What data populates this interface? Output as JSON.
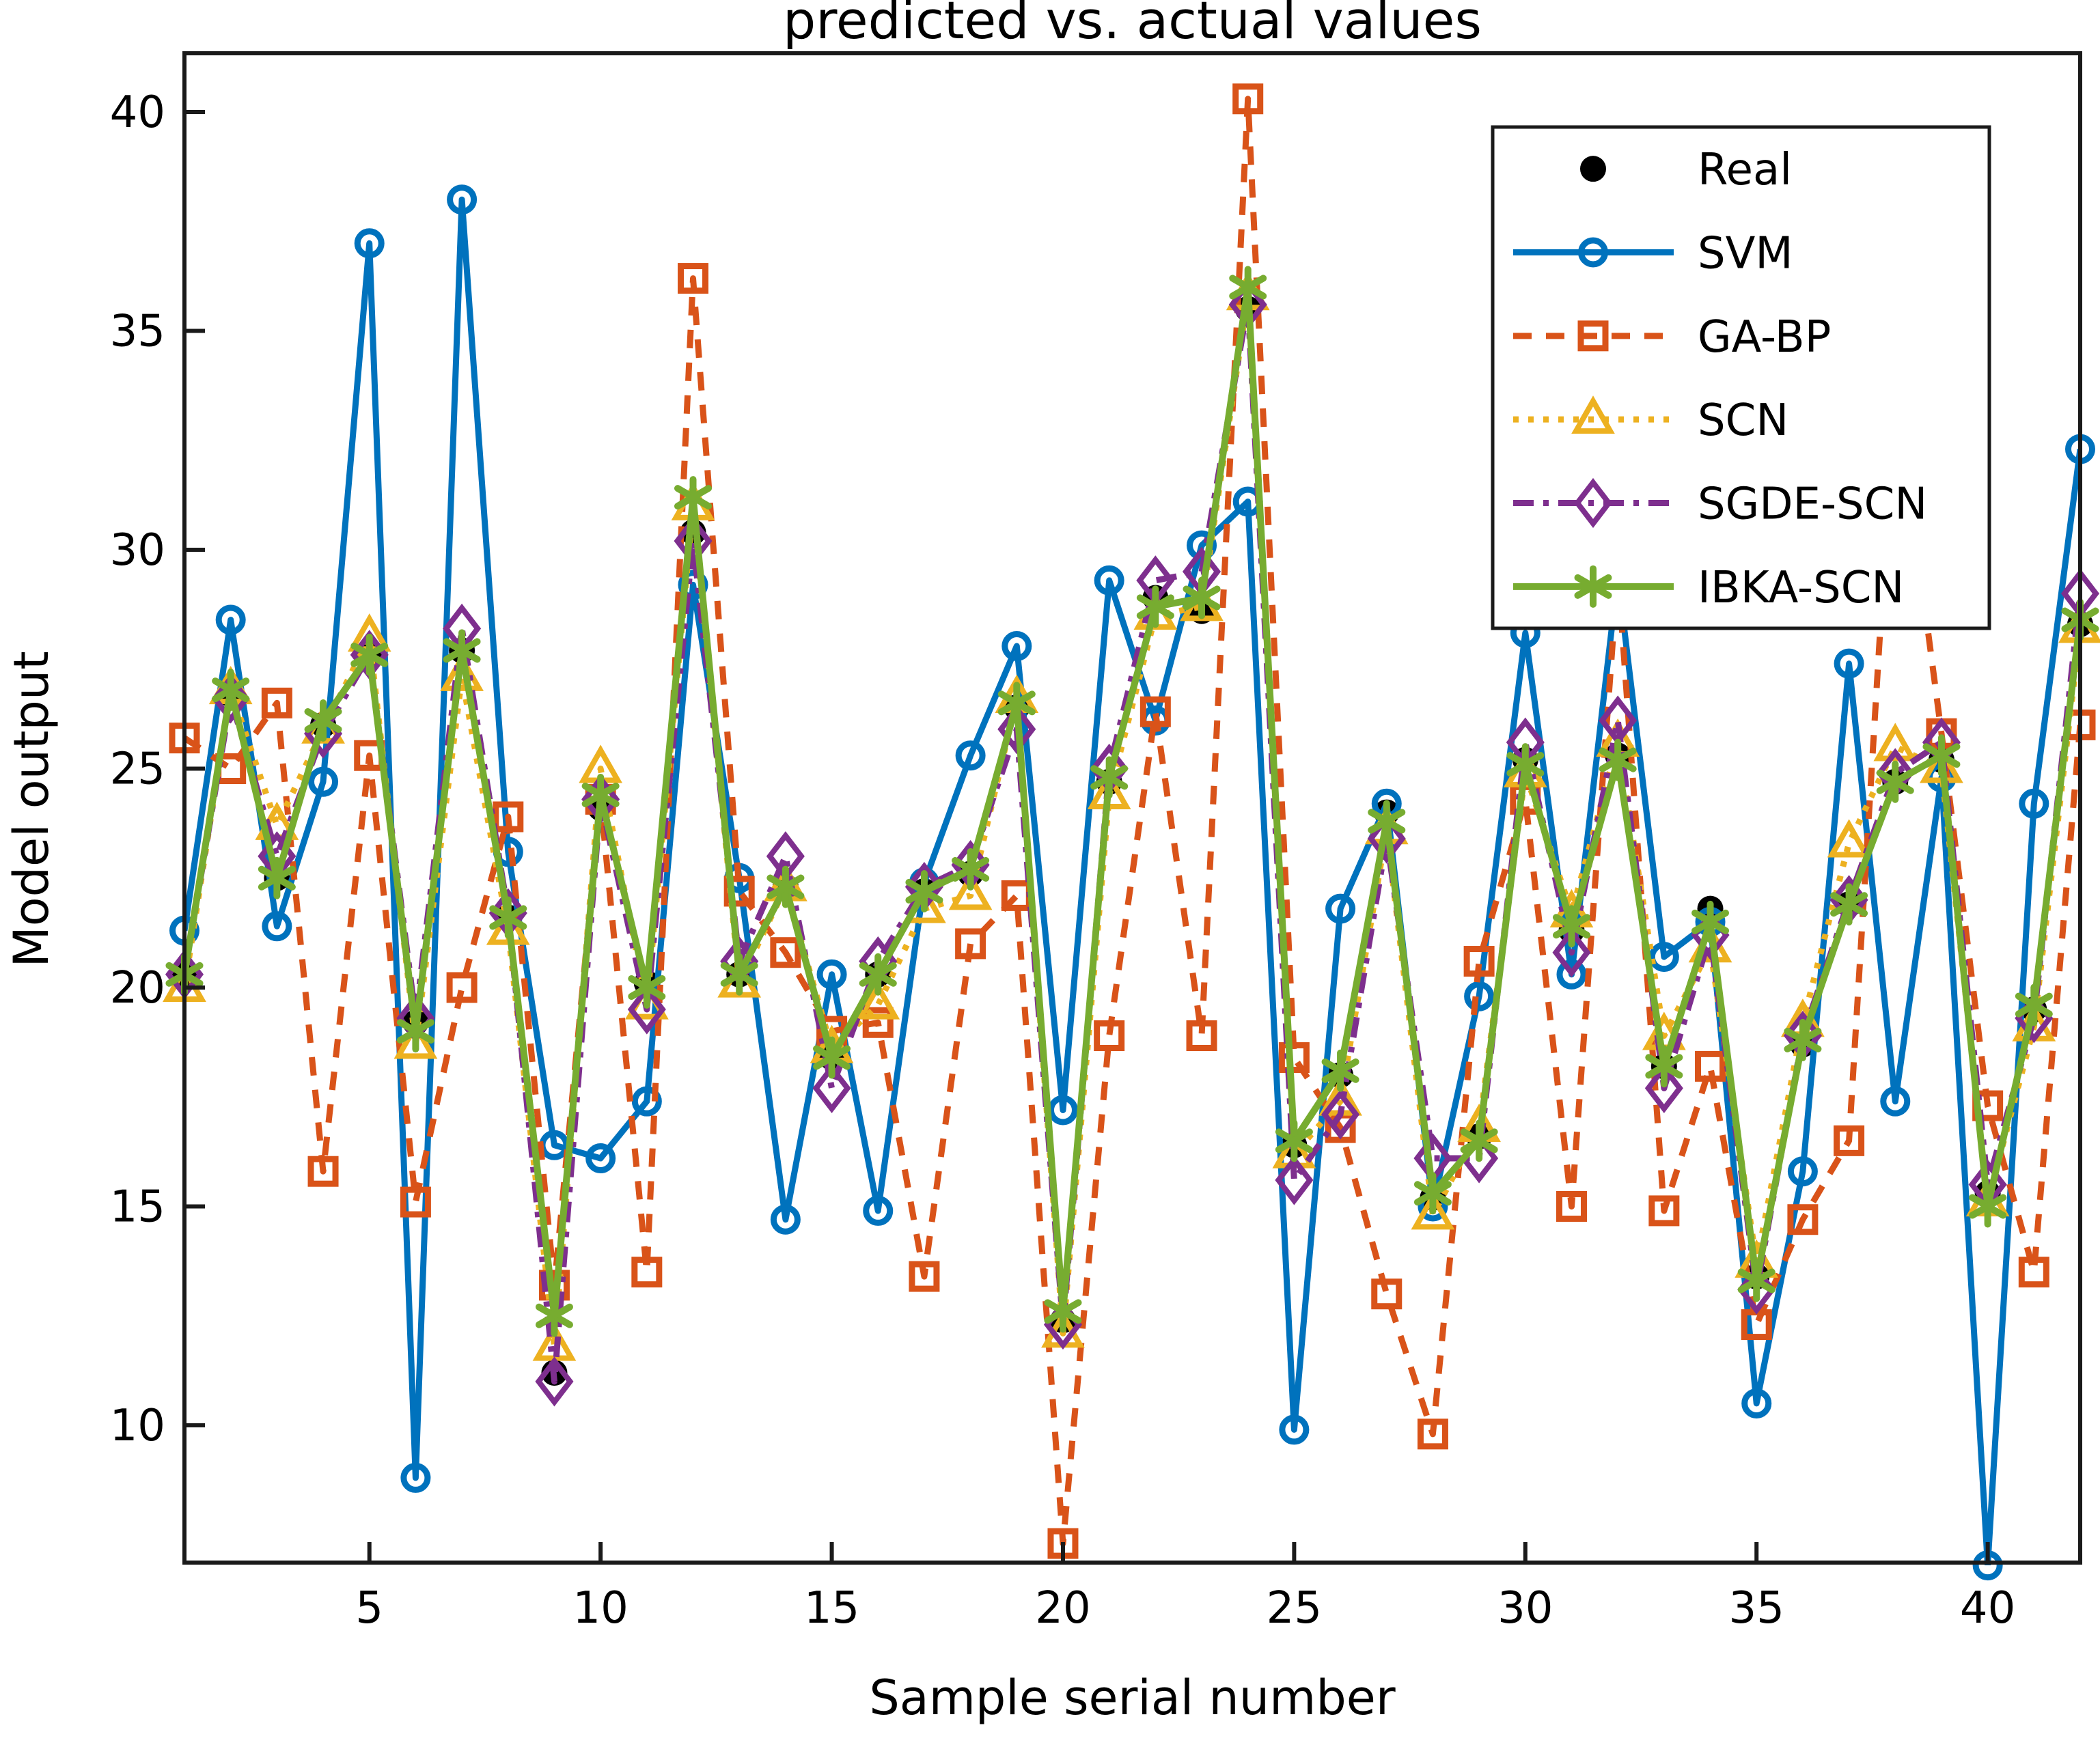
{
  "figure": {
    "background": "#ffffff",
    "frame_color": "#1a1a1a"
  },
  "chart_data": {
    "type": "line",
    "title": "predicted vs. actual values",
    "xlabel": "Sample serial number",
    "ylabel": "Model output",
    "xlim": [
      1,
      42
    ],
    "ylim": [
      6.85,
      41.35
    ],
    "xticks": [
      5,
      10,
      15,
      20,
      25,
      30,
      35,
      40
    ],
    "yticks": [
      10,
      15,
      20,
      25,
      30,
      35,
      40
    ],
    "grid": false,
    "legend_position": "northeast",
    "x": [
      1,
      2,
      3,
      4,
      5,
      6,
      7,
      8,
      9,
      10,
      11,
      12,
      13,
      14,
      15,
      16,
      17,
      18,
      19,
      20,
      21,
      22,
      23,
      24,
      25,
      26,
      27,
      28,
      29,
      30,
      31,
      32,
      33,
      34,
      35,
      36,
      37,
      38,
      39,
      40,
      41,
      42
    ],
    "series": [
      {
        "name": "Real",
        "color": "#000000",
        "line": "none",
        "marker": "filled-circle",
        "values": [
          20.3,
          26.7,
          22.5,
          26.0,
          27.6,
          19.2,
          27.7,
          21.6,
          11.2,
          24.1,
          20.1,
          30.4,
          20.3,
          22.3,
          18.4,
          20.3,
          22.2,
          22.6,
          26.4,
          12.4,
          24.7,
          28.9,
          28.6,
          35.5,
          16.4,
          18.0,
          24.0,
          15.2,
          16.6,
          25.2,
          21.3,
          25.3,
          18.2,
          21.8,
          13.4,
          18.7,
          21.9,
          24.7,
          25.2,
          15.3,
          19.5,
          28.3
        ]
      },
      {
        "name": "SVM",
        "color": "#0072BD",
        "line": "solid",
        "marker": "open-circle",
        "values": [
          21.3,
          28.4,
          21.4,
          24.7,
          37.0,
          8.8,
          38.0,
          23.1,
          16.4,
          16.1,
          17.4,
          29.2,
          22.5,
          14.7,
          20.3,
          14.9,
          22.4,
          25.3,
          27.8,
          17.2,
          29.3,
          26.1,
          30.1,
          31.1,
          9.9,
          21.8,
          24.2,
          15.0,
          19.8,
          28.1,
          20.3,
          29.4,
          20.7,
          21.5,
          10.5,
          15.8,
          27.4,
          17.4,
          24.8,
          6.8,
          24.2,
          32.3
        ]
      },
      {
        "name": "GA-BP",
        "color": "#D95319",
        "line": "dashed",
        "marker": "open-square",
        "values": [
          25.7,
          25.0,
          26.5,
          15.8,
          25.3,
          15.1,
          20.0,
          23.9,
          13.2,
          24.3,
          13.5,
          36.2,
          22.2,
          20.8,
          19.0,
          19.2,
          13.4,
          21.0,
          22.1,
          7.3,
          18.9,
          26.3,
          18.9,
          40.3,
          18.4,
          16.8,
          13.0,
          9.8,
          20.6,
          24.3,
          15.0,
          29.5,
          14.9,
          18.2,
          12.3,
          14.7,
          16.5,
          33.8,
          25.8,
          17.3,
          13.5,
          26.0
        ]
      },
      {
        "name": "SCN",
        "color": "#EDB120",
        "line": "dotted",
        "marker": "open-triangle",
        "values": [
          20.0,
          26.8,
          23.7,
          25.9,
          28.0,
          18.7,
          27.1,
          21.3,
          11.8,
          25.0,
          19.6,
          31.0,
          20.1,
          22.3,
          18.6,
          19.6,
          21.8,
          22.1,
          26.6,
          12.1,
          24.4,
          28.5,
          28.7,
          35.8,
          16.2,
          17.4,
          23.6,
          14.8,
          16.8,
          24.9,
          21.7,
          25.6,
          18.9,
          20.9,
          13.7,
          19.2,
          23.3,
          25.5,
          25.0,
          15.1,
          19.1,
          28.2
        ]
      },
      {
        "name": "SGDE-SCN",
        "color": "#7E2F8E",
        "line": "dashdot",
        "marker": "open-diamond",
        "values": [
          20.3,
          26.6,
          23.0,
          25.8,
          27.6,
          19.3,
          28.2,
          21.7,
          11.0,
          24.3,
          19.5,
          30.2,
          20.6,
          23.0,
          17.7,
          20.6,
          22.3,
          22.8,
          25.9,
          12.3,
          25.0,
          29.3,
          29.5,
          35.6,
          15.6,
          17.1,
          23.4,
          16.1,
          16.1,
          25.6,
          20.8,
          26.1,
          17.7,
          21.2,
          13.1,
          18.9,
          22.0,
          24.9,
          25.6,
          15.5,
          19.3,
          29.0
        ]
      },
      {
        "name": "IBKA-SCN",
        "color": "#77AC30",
        "line": "solid",
        "marker": "asterisk",
        "values": [
          20.3,
          26.8,
          22.5,
          26.1,
          27.6,
          19.0,
          27.7,
          21.6,
          12.5,
          24.4,
          20.0,
          31.2,
          20.3,
          22.3,
          18.4,
          20.3,
          22.2,
          22.7,
          26.5,
          12.6,
          24.8,
          28.7,
          28.9,
          36.0,
          16.5,
          18.1,
          23.8,
          15.3,
          16.5,
          25.1,
          21.4,
          25.2,
          18.2,
          21.5,
          13.3,
          18.8,
          21.9,
          24.7,
          25.3,
          15.0,
          19.6,
          28.4
        ]
      }
    ]
  }
}
